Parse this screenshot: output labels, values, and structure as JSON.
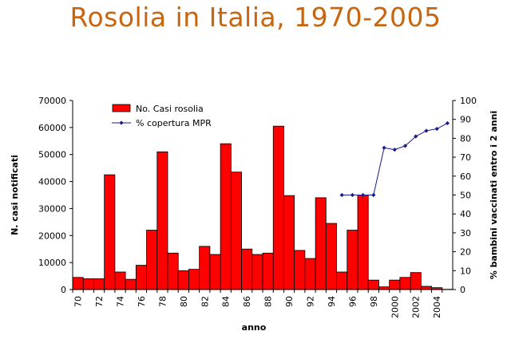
{
  "page": {
    "title": "Rosolia in Italia, 1970-2005"
  },
  "chart_data": {
    "type": "bar",
    "title": "Rosolia in Italia, 1970-2005",
    "xlabel": "anno",
    "ylabel": "N. casi notificati",
    "y2label": "% bambini vaccinati entro i 2 anni",
    "x_tick_labels": [
      "70",
      "72",
      "74",
      "76",
      "78",
      "80",
      "82",
      "84",
      "86",
      "88",
      "90",
      "92",
      "94",
      "96",
      "98",
      "2000",
      "2002",
      "2004"
    ],
    "years": [
      1970,
      1971,
      1972,
      1973,
      1974,
      1975,
      1976,
      1977,
      1978,
      1979,
      1980,
      1981,
      1982,
      1983,
      1984,
      1985,
      1986,
      1987,
      1988,
      1989,
      1990,
      1991,
      1992,
      1993,
      1994,
      1995,
      1996,
      1997,
      1998,
      1999,
      2000,
      2001,
      2002,
      2003,
      2004,
      2005
    ],
    "ylim": [
      0,
      70000
    ],
    "y_ticks": [
      0,
      10000,
      20000,
      30000,
      40000,
      50000,
      60000,
      70000
    ],
    "y2lim": [
      0,
      100
    ],
    "y2_ticks": [
      0,
      10,
      20,
      30,
      40,
      50,
      60,
      70,
      80,
      90,
      100
    ],
    "legend_position": "top-left",
    "series": [
      {
        "name": "No. Casi rosolia",
        "kind": "bar",
        "color": "#ff0000",
        "axis": "left",
        "values": [
          4500,
          4000,
          4000,
          42500,
          6500,
          3800,
          9000,
          22000,
          51000,
          13500,
          7000,
          7500,
          16000,
          13000,
          54000,
          43500,
          15000,
          13000,
          13500,
          60500,
          34800,
          14500,
          11500,
          34000,
          24500,
          6500,
          22000,
          35000,
          3500,
          1000,
          3500,
          4500,
          6300,
          1200,
          700,
          100
        ]
      },
      {
        "name": "% copertura MPR",
        "kind": "line",
        "color": "#1a1a8c",
        "axis": "right",
        "x": [
          1995,
          1996,
          1997,
          1998,
          1999,
          2000,
          2001,
          2002,
          2003,
          2004,
          2005
        ],
        "values": [
          50,
          50,
          50,
          50,
          75,
          74,
          76,
          81,
          84,
          85,
          88
        ]
      }
    ]
  }
}
